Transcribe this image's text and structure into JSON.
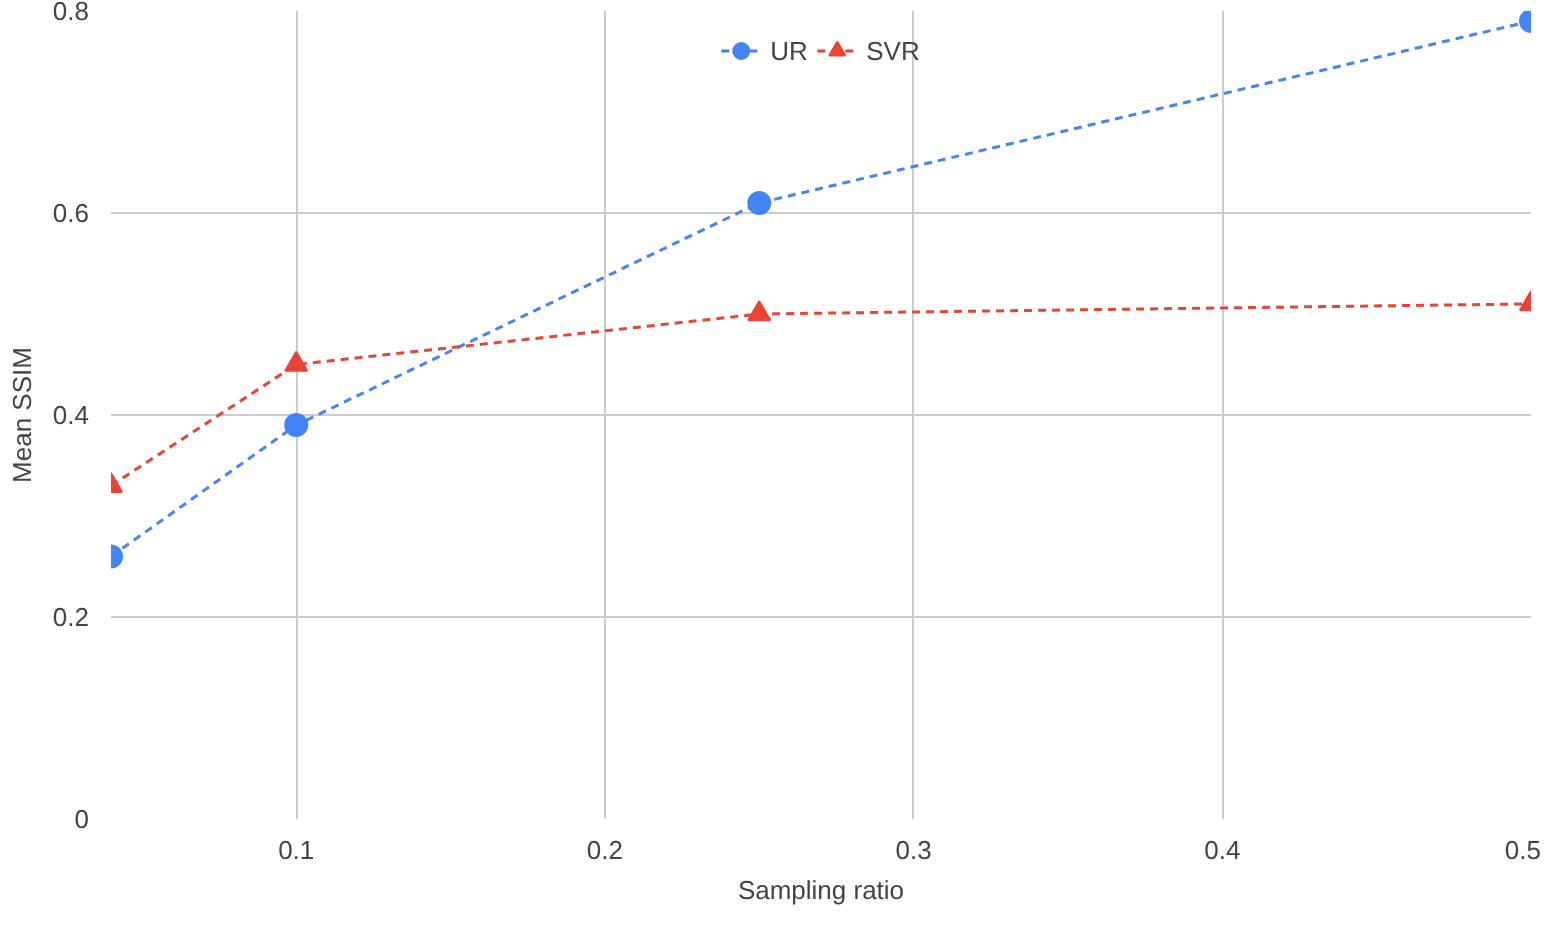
{
  "chart_data": {
    "type": "line",
    "xlabel": "Sampling ratio",
    "ylabel": "Mean SSIM",
    "x": [
      0.04,
      0.1,
      0.25,
      0.5
    ],
    "series": [
      {
        "name": "UR",
        "color": "#4285f4",
        "marker": "circle",
        "values": [
          0.26,
          0.39,
          0.61,
          0.79
        ]
      },
      {
        "name": "SVR",
        "color": "#ea4335",
        "marker": "triangle",
        "values": [
          0.33,
          0.45,
          0.5,
          0.51
        ]
      }
    ],
    "xlim": [
      0.04,
      0.5
    ],
    "xticks": [
      0.1,
      0.2,
      0.3,
      0.4,
      0.5
    ],
    "ylim": [
      0,
      0.8
    ],
    "yticks": [
      0,
      0.2,
      0.4,
      0.6,
      0.8
    ],
    "grid": true,
    "legend": "top",
    "line_style": "dashed"
  }
}
